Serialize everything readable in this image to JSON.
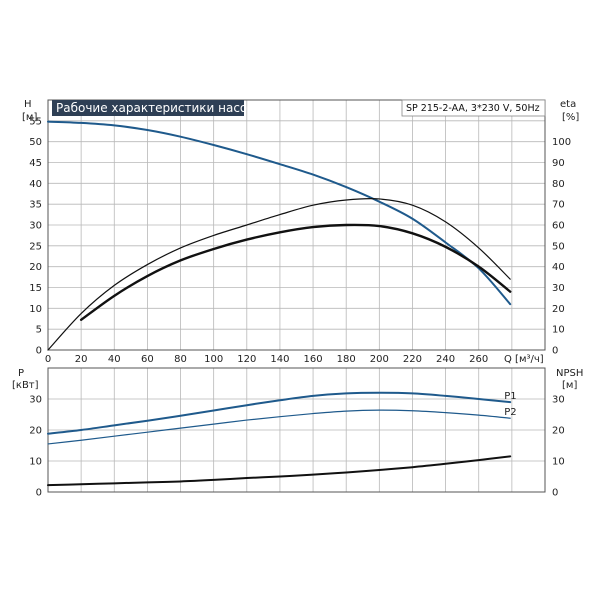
{
  "chart_data": [
    {
      "type": "line",
      "title": "Рабочие характеристики насоса",
      "model_label": "SP 215-2-AA, 3*230 V, 50Hz",
      "y_left": {
        "label": "H",
        "unit": "[м]",
        "range": [
          0,
          60
        ],
        "ticks": [
          "0",
          "5",
          "10",
          "15",
          "20",
          "25",
          "30",
          "35",
          "40",
          "45",
          "50",
          "55"
        ]
      },
      "y_right": {
        "label": "eta",
        "unit": "[%]",
        "range": [
          0,
          120
        ],
        "ticks": [
          "0",
          "10",
          "20",
          "30",
          "40",
          "50",
          "60",
          "70",
          "80",
          "90",
          "100"
        ]
      },
      "x": {
        "label": "Q [м³/ч]",
        "range": [
          0,
          300
        ],
        "ticks": [
          "0",
          "20",
          "40",
          "60",
          "80",
          "100",
          "120",
          "140",
          "160",
          "180",
          "200",
          "220",
          "240",
          "260"
        ]
      },
      "grid": true,
      "series": [
        {
          "name": "H",
          "axis": "left",
          "color": "#1f5a8c",
          "width": 2,
          "points": [
            [
              0,
              54.8
            ],
            [
              20,
              54.5
            ],
            [
              40,
              53.9
            ],
            [
              60,
              52.8
            ],
            [
              80,
              51.2
            ],
            [
              100,
              49.2
            ],
            [
              120,
              47.0
            ],
            [
              140,
              44.6
            ],
            [
              160,
              42.1
            ],
            [
              180,
              39.1
            ],
            [
              200,
              35.6
            ],
            [
              220,
              31.5
            ],
            [
              240,
              25.8
            ],
            [
              260,
              19.6
            ],
            [
              279,
              11.0
            ]
          ]
        },
        {
          "name": "",
          "axis": "right",
          "color": "#111111",
          "width": 1.2,
          "points": [
            [
              0,
              0
            ],
            [
              20,
              17.5
            ],
            [
              40,
              31
            ],
            [
              60,
              41
            ],
            [
              80,
              49
            ],
            [
              100,
              55
            ],
            [
              120,
              60
            ],
            [
              140,
              65
            ],
            [
              160,
              69.5
            ],
            [
              180,
              72
            ],
            [
              200,
              72.5
            ],
            [
              220,
              69.5
            ],
            [
              240,
              61.5
            ],
            [
              260,
              49
            ],
            [
              279,
              34
            ]
          ]
        },
        {
          "name": "",
          "axis": "right",
          "color": "#111111",
          "width": 2.4,
          "points": [
            [
              20,
              14.5
            ],
            [
              40,
              26
            ],
            [
              60,
              35.5
            ],
            [
              80,
              43
            ],
            [
              100,
              48.5
            ],
            [
              120,
              53
            ],
            [
              140,
              56.5
            ],
            [
              160,
              59
            ],
            [
              180,
              60
            ],
            [
              200,
              59.5
            ],
            [
              220,
              56
            ],
            [
              240,
              49.5
            ],
            [
              260,
              40
            ],
            [
              279,
              28
            ]
          ]
        }
      ]
    },
    {
      "type": "line",
      "y_left": {
        "label": "P",
        "unit": "[кВт]",
        "range": [
          0,
          40
        ],
        "ticks": [
          "0",
          "10",
          "20",
          "30"
        ]
      },
      "y_right": {
        "label": "NPSH",
        "unit": "[м]",
        "range": [
          0,
          40
        ],
        "ticks": [
          "0",
          "10",
          "20",
          "30"
        ]
      },
      "x": {
        "range": [
          0,
          300
        ]
      },
      "grid": true,
      "series": [
        {
          "name": "P1",
          "axis": "left",
          "color": "#1f5a8c",
          "width": 2,
          "points": [
            [
              0,
              18.8
            ],
            [
              20,
              20
            ],
            [
              40,
              21.5
            ],
            [
              60,
              23
            ],
            [
              80,
              24.6
            ],
            [
              100,
              26.3
            ],
            [
              120,
              28
            ],
            [
              140,
              29.6
            ],
            [
              160,
              31
            ],
            [
              180,
              31.8
            ],
            [
              200,
              32
            ],
            [
              220,
              31.8
            ],
            [
              240,
              31
            ],
            [
              260,
              30
            ],
            [
              279,
              29
            ]
          ]
        },
        {
          "name": "P2",
          "axis": "left",
          "color": "#1f5a8c",
          "width": 1.2,
          "points": [
            [
              0,
              15.5
            ],
            [
              20,
              16.7
            ],
            [
              40,
              18
            ],
            [
              60,
              19.3
            ],
            [
              80,
              20.6
            ],
            [
              100,
              21.9
            ],
            [
              120,
              23.2
            ],
            [
              140,
              24.3
            ],
            [
              160,
              25.3
            ],
            [
              180,
              26.1
            ],
            [
              200,
              26.4
            ],
            [
              220,
              26.2
            ],
            [
              240,
              25.6
            ],
            [
              260,
              24.8
            ],
            [
              279,
              23.8
            ]
          ]
        },
        {
          "name": "NPSH",
          "axis": "right",
          "color": "#111111",
          "width": 2,
          "points": [
            [
              0,
              2.2
            ],
            [
              20,
              2.5
            ],
            [
              40,
              2.8
            ],
            [
              60,
              3.1
            ],
            [
              80,
              3.4
            ],
            [
              100,
              3.9
            ],
            [
              120,
              4.5
            ],
            [
              140,
              5.0
            ],
            [
              160,
              5.6
            ],
            [
              180,
              6.3
            ],
            [
              200,
              7.1
            ],
            [
              220,
              8.0
            ],
            [
              240,
              9.1
            ],
            [
              260,
              10.3
            ],
            [
              279,
              11.5
            ]
          ]
        }
      ]
    }
  ]
}
